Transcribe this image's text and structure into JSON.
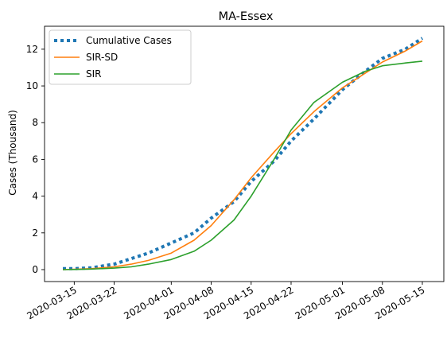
{
  "chart_data": {
    "type": "line",
    "title": "MA-Essex",
    "ylabel": "Cases (Thousand)",
    "xlabel": "",
    "x_range": [
      "2020-03-13",
      "2020-05-15"
    ],
    "ylim": [
      -0.65,
      13.25
    ],
    "x_ticks": [
      "2020-03-15",
      "2020-03-22",
      "2020-04-01",
      "2020-04-08",
      "2020-04-15",
      "2020-04-22",
      "2020-05-01",
      "2020-05-08",
      "2020-05-15"
    ],
    "y_ticks": [
      0,
      2,
      4,
      6,
      8,
      10,
      12
    ],
    "grid": false,
    "legend_position": "top-left",
    "series": [
      {
        "name": "Cumulative Cases",
        "color": "#1f77b4",
        "style": "dotted",
        "points": [
          [
            "2020-03-13",
            0.05
          ],
          [
            "2020-03-15",
            0.05
          ],
          [
            "2020-03-18",
            0.1
          ],
          [
            "2020-03-22",
            0.3
          ],
          [
            "2020-03-25",
            0.6
          ],
          [
            "2020-03-28",
            0.9
          ],
          [
            "2020-04-01",
            1.45
          ],
          [
            "2020-04-05",
            2.0
          ],
          [
            "2020-04-08",
            2.8
          ],
          [
            "2020-04-12",
            3.7
          ],
          [
            "2020-04-15",
            4.8
          ],
          [
            "2020-04-19",
            5.9
          ],
          [
            "2020-04-22",
            7.0
          ],
          [
            "2020-04-26",
            8.2
          ],
          [
            "2020-05-01",
            9.8
          ],
          [
            "2020-05-05",
            10.8
          ],
          [
            "2020-05-08",
            11.5
          ],
          [
            "2020-05-12",
            12.0
          ],
          [
            "2020-05-15",
            12.6
          ]
        ]
      },
      {
        "name": "SIR-SD",
        "color": "#ff7f0e",
        "style": "solid",
        "points": [
          [
            "2020-03-13",
            0.0
          ],
          [
            "2020-03-15",
            0.02
          ],
          [
            "2020-03-18",
            0.05
          ],
          [
            "2020-03-22",
            0.15
          ],
          [
            "2020-03-25",
            0.3
          ],
          [
            "2020-03-28",
            0.5
          ],
          [
            "2020-04-01",
            0.9
          ],
          [
            "2020-04-05",
            1.6
          ],
          [
            "2020-04-08",
            2.4
          ],
          [
            "2020-04-12",
            3.8
          ],
          [
            "2020-04-15",
            5.0
          ],
          [
            "2020-04-19",
            6.4
          ],
          [
            "2020-04-22",
            7.4
          ],
          [
            "2020-04-26",
            8.6
          ],
          [
            "2020-05-01",
            9.9
          ],
          [
            "2020-05-05",
            10.7
          ],
          [
            "2020-05-08",
            11.3
          ],
          [
            "2020-05-12",
            11.9
          ],
          [
            "2020-05-15",
            12.45
          ]
        ]
      },
      {
        "name": "SIR",
        "color": "#2ca02c",
        "style": "solid",
        "points": [
          [
            "2020-03-13",
            0.0
          ],
          [
            "2020-03-15",
            0.01
          ],
          [
            "2020-03-18",
            0.03
          ],
          [
            "2020-03-22",
            0.08
          ],
          [
            "2020-03-25",
            0.15
          ],
          [
            "2020-03-28",
            0.3
          ],
          [
            "2020-04-01",
            0.55
          ],
          [
            "2020-04-05",
            1.0
          ],
          [
            "2020-04-08",
            1.6
          ],
          [
            "2020-04-12",
            2.7
          ],
          [
            "2020-04-15",
            4.0
          ],
          [
            "2020-04-19",
            6.0
          ],
          [
            "2020-04-22",
            7.6
          ],
          [
            "2020-04-26",
            9.1
          ],
          [
            "2020-05-01",
            10.2
          ],
          [
            "2020-05-05",
            10.8
          ],
          [
            "2020-05-08",
            11.1
          ],
          [
            "2020-05-12",
            11.25
          ],
          [
            "2020-05-15",
            11.35
          ]
        ]
      }
    ]
  }
}
